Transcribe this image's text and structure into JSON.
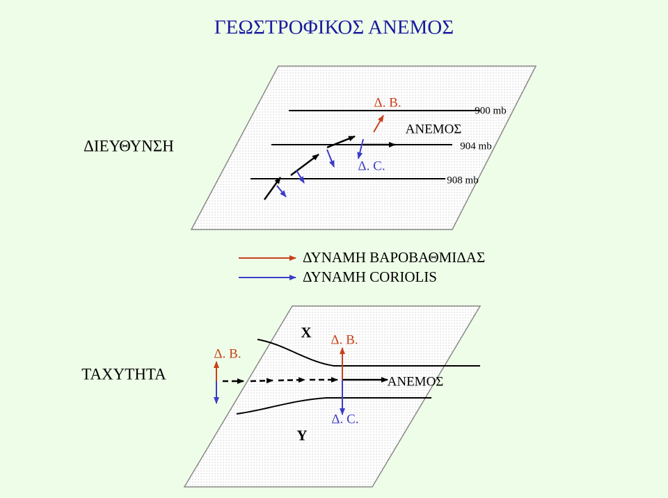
{
  "title": "ΓΕΩΣΤΡΟΦΙΚΟΣ ΑΝΕΜΟΣ",
  "top": {
    "label": "ΔΙΕΥΘΥΝΣΗ",
    "pressure_force": "Δ. Β.",
    "coriolis": "Δ. C.",
    "wind": "ΑΝΕΜΟΣ",
    "isobars": [
      "900 mb",
      "904 mb",
      "908 mb"
    ]
  },
  "legend": [
    "ΔΥΝΑΜΗ ΒΑΡΟΒΑΘΜΙΔΑΣ",
    "ΔΥΝΑΜΗ CORIOLIS"
  ],
  "bottom": {
    "label": "ΤΑΧΥΤΗΤΑ",
    "pressure_force_left": "Δ. Β.",
    "x": "X",
    "pressure_force_right": "Δ. Β.",
    "wind": "ΑΝΕΜΟΣ",
    "y": "Y",
    "coriolis": "Δ. C."
  }
}
